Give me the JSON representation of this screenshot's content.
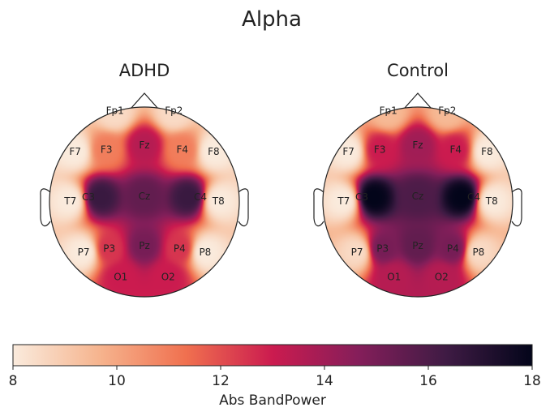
{
  "chart_data": {
    "type": "heatmap",
    "title": "Alpha",
    "colorbar": {
      "label": "Abs BandPower",
      "range": [
        8,
        18
      ],
      "ticks": [
        8,
        10,
        12,
        14,
        16,
        18
      ],
      "colormap": [
        "#faebdd",
        "#f6b48e",
        "#f0704f",
        "#cb1b4f",
        "#841e5a",
        "#3f1b44",
        "#03051a"
      ]
    },
    "panels": [
      {
        "name": "ADHD",
        "electrodes": [
          {
            "label": "Fp1",
            "value": 8.5
          },
          {
            "label": "Fp2",
            "value": 8.5
          },
          {
            "label": "F7",
            "value": 8.0
          },
          {
            "label": "F3",
            "value": 11.0
          },
          {
            "label": "Fz",
            "value": 13.5
          },
          {
            "label": "F4",
            "value": 11.0
          },
          {
            "label": "F8",
            "value": 8.0
          },
          {
            "label": "T7",
            "value": 8.0
          },
          {
            "label": "C3",
            "value": 16.5
          },
          {
            "label": "Cz",
            "value": 15.5
          },
          {
            "label": "C4",
            "value": 16.5
          },
          {
            "label": "T8",
            "value": 8.0
          },
          {
            "label": "P7",
            "value": 8.0
          },
          {
            "label": "P3",
            "value": 12.5
          },
          {
            "label": "Pz",
            "value": 15.0
          },
          {
            "label": "P4",
            "value": 12.5
          },
          {
            "label": "P8",
            "value": 8.0
          },
          {
            "label": "O1",
            "value": 13.0
          },
          {
            "label": "O2",
            "value": 13.0
          }
        ]
      },
      {
        "name": "Control",
        "electrodes": [
          {
            "label": "Fp1",
            "value": 9.5
          },
          {
            "label": "Fp2",
            "value": 9.5
          },
          {
            "label": "F7",
            "value": 8.0
          },
          {
            "label": "F3",
            "value": 13.0
          },
          {
            "label": "Fz",
            "value": 14.0
          },
          {
            "label": "F4",
            "value": 13.0
          },
          {
            "label": "F8",
            "value": 8.0
          },
          {
            "label": "T7",
            "value": 8.0
          },
          {
            "label": "C3",
            "value": 18.0
          },
          {
            "label": "Cz",
            "value": 16.0
          },
          {
            "label": "C4",
            "value": 18.0
          },
          {
            "label": "T8",
            "value": 8.0
          },
          {
            "label": "P7",
            "value": 8.5
          },
          {
            "label": "P3",
            "value": 15.0
          },
          {
            "label": "Pz",
            "value": 15.5
          },
          {
            "label": "P4",
            "value": 15.0
          },
          {
            "label": "P8",
            "value": 8.5
          },
          {
            "label": "O1",
            "value": 13.5
          },
          {
            "label": "O2",
            "value": 13.5
          }
        ]
      }
    ]
  }
}
